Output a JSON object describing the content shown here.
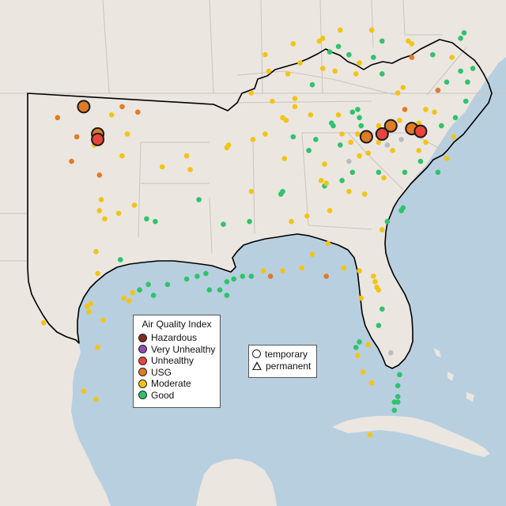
{
  "legend": {
    "title": "Air Quality Index",
    "categories": [
      {
        "label": "Hazardous",
        "color": "#7e2a2a"
      },
      {
        "label": "Very Unhealthy",
        "color": "#8e4fb0"
      },
      {
        "label": "Unhealthy",
        "color": "#e8453c"
      },
      {
        "label": "USG",
        "color": "#e07b26"
      },
      {
        "label": "Moderate",
        "color": "#f2c414"
      },
      {
        "label": "Good",
        "color": "#2ec36b"
      }
    ]
  },
  "shape_legend": {
    "temporary_label": "temporary",
    "permanent_label": "permanent"
  },
  "colors": {
    "water": "#b8cfe0",
    "land": "#ebe6e0",
    "state_border": "#c9c4bd",
    "region_outline": "#000000",
    "no_data": "#b9bcc0"
  },
  "monitors": [
    {
      "lon": -98.2,
      "lat": 36.6,
      "aqi": "USG",
      "major": true
    },
    {
      "lon": -97.4,
      "lat": 35.6,
      "aqi": "USG",
      "major": true
    },
    {
      "lon": -97.4,
      "lat": 35.4,
      "aqi": "Unhealthy",
      "major": true
    },
    {
      "lon": -82.0,
      "lat": 35.5,
      "aqi": "USG",
      "major": true
    },
    {
      "lon": -80.6,
      "lat": 35.9,
      "aqi": "USG",
      "major": true
    },
    {
      "lon": -81.1,
      "lat": 35.6,
      "aqi": "Unhealthy",
      "major": true
    },
    {
      "lon": -79.4,
      "lat": 35.8,
      "aqi": "USG",
      "major": true
    },
    {
      "lon": -78.9,
      "lat": 35.7,
      "aqi": "Unhealthy",
      "major": true
    },
    {
      "lon": -99.7,
      "lat": 36.2,
      "aqi": "USG"
    },
    {
      "lon": -98.6,
      "lat": 35.5,
      "aqi": "USG"
    },
    {
      "lon": -98.9,
      "lat": 34.6,
      "aqi": "USG"
    },
    {
      "lon": -97.3,
      "lat": 34.1,
      "aqi": "USG"
    },
    {
      "lon": -96.0,
      "lat": 36.6,
      "aqi": "USG"
    },
    {
      "lon": -95.1,
      "lat": 36.4,
      "aqi": "USG"
    },
    {
      "lon": -96.6,
      "lat": 36.3,
      "aqi": "Moderate"
    },
    {
      "lon": -95.7,
      "lat": 35.6,
      "aqi": "Moderate"
    },
    {
      "lon": -97.6,
      "lat": 35.2,
      "aqi": "Moderate"
    },
    {
      "lon": -96.0,
      "lat": 34.8,
      "aqi": "Moderate"
    },
    {
      "lon": -93.7,
      "lat": 34.4,
      "aqi": "Moderate"
    },
    {
      "lon": -97.2,
      "lat": 33.2,
      "aqi": "Moderate"
    },
    {
      "lon": -97.3,
      "lat": 32.8,
      "aqi": "Moderate"
    },
    {
      "lon": -97.0,
      "lat": 32.5,
      "aqi": "Moderate"
    },
    {
      "lon": -96.2,
      "lat": 32.7,
      "aqi": "Moderate"
    },
    {
      "lon": -95.3,
      "lat": 33.0,
      "aqi": "Moderate"
    },
    {
      "lon": -94.6,
      "lat": 32.5,
      "aqi": "Good"
    },
    {
      "lon": -94.1,
      "lat": 32.4,
      "aqi": "Good"
    },
    {
      "lon": -97.5,
      "lat": 31.3,
      "aqi": "Moderate"
    },
    {
      "lon": -96.1,
      "lat": 31.0,
      "aqi": "Good"
    },
    {
      "lon": -97.4,
      "lat": 30.5,
      "aqi": "Moderate"
    },
    {
      "lon": -97.8,
      "lat": 29.4,
      "aqi": "Moderate"
    },
    {
      "lon": -98.0,
      "lat": 29.3,
      "aqi": "Moderate"
    },
    {
      "lon": -97.9,
      "lat": 29.1,
      "aqi": "Moderate"
    },
    {
      "lon": -95.9,
      "lat": 29.6,
      "aqi": "Moderate"
    },
    {
      "lon": -95.6,
      "lat": 29.5,
      "aqi": "Moderate"
    },
    {
      "lon": -95.4,
      "lat": 29.8,
      "aqi": "Moderate"
    },
    {
      "lon": -95.0,
      "lat": 29.9,
      "aqi": "Good"
    },
    {
      "lon": -94.5,
      "lat": 30.1,
      "aqi": "Good"
    },
    {
      "lon": -94.2,
      "lat": 29.7,
      "aqi": "Good"
    },
    {
      "lon": -93.4,
      "lat": 30.1,
      "aqi": "Good"
    },
    {
      "lon": -92.3,
      "lat": 30.3,
      "aqi": "Good"
    },
    {
      "lon": -91.7,
      "lat": 30.4,
      "aqi": "Good"
    },
    {
      "lon": -91.2,
      "lat": 30.5,
      "aqi": "Good"
    },
    {
      "lon": -91.0,
      "lat": 29.9,
      "aqi": "Good"
    },
    {
      "lon": -90.4,
      "lat": 29.9,
      "aqi": "Good"
    },
    {
      "lon": -90.0,
      "lat": 29.7,
      "aqi": "Good"
    },
    {
      "lon": -90.0,
      "lat": 30.2,
      "aqi": "Good"
    },
    {
      "lon": -89.6,
      "lat": 30.3,
      "aqi": "Good"
    },
    {
      "lon": -89.1,
      "lat": 30.4,
      "aqi": "Good"
    },
    {
      "lon": -88.6,
      "lat": 30.4,
      "aqi": "Good"
    },
    {
      "lon": -87.9,
      "lat": 30.6,
      "aqi": "Moderate"
    },
    {
      "lon": -87.5,
      "lat": 30.4,
      "aqi": "USG"
    },
    {
      "lon": -86.8,
      "lat": 30.6,
      "aqi": "Moderate"
    },
    {
      "lon": -85.7,
      "lat": 30.7,
      "aqi": "Moderate"
    },
    {
      "lon": -84.3,
      "lat": 30.4,
      "aqi": "USG"
    },
    {
      "lon": -83.3,
      "lat": 30.7,
      "aqi": "Moderate"
    },
    {
      "lon": -82.4,
      "lat": 30.6,
      "aqi": "Moderate"
    },
    {
      "lon": -81.6,
      "lat": 30.4,
      "aqi": "Moderate"
    },
    {
      "lon": -81.5,
      "lat": 30.2,
      "aqi": "Moderate"
    },
    {
      "lon": -81.4,
      "lat": 30.0,
      "aqi": "Moderate"
    },
    {
      "lon": -81.3,
      "lat": 29.9,
      "aqi": "Moderate"
    },
    {
      "lon": -82.3,
      "lat": 29.6,
      "aqi": "Moderate"
    },
    {
      "lon": -81.1,
      "lat": 29.2,
      "aqi": "Good"
    },
    {
      "lon": -81.3,
      "lat": 28.6,
      "aqi": "Good"
    },
    {
      "lon": -82.4,
      "lat": 28.0,
      "aqi": "Good"
    },
    {
      "lon": -81.9,
      "lat": 27.9,
      "aqi": "Moderate"
    },
    {
      "lon": -82.6,
      "lat": 27.8,
      "aqi": "Good"
    },
    {
      "lon": -82.5,
      "lat": 27.5,
      "aqi": "Moderate"
    },
    {
      "lon": -80.6,
      "lat": 27.6,
      "aqi": "No Data"
    },
    {
      "lon": -82.2,
      "lat": 26.9,
      "aqi": "Moderate"
    },
    {
      "lon": -80.1,
      "lat": 26.8,
      "aqi": "Good"
    },
    {
      "lon": -80.2,
      "lat": 26.4,
      "aqi": "Good"
    },
    {
      "lon": -81.7,
      "lat": 26.5,
      "aqi": "Moderate"
    },
    {
      "lon": -80.2,
      "lat": 26.0,
      "aqi": "Good"
    },
    {
      "lon": -80.4,
      "lat": 25.8,
      "aqi": "Good"
    },
    {
      "lon": -80.2,
      "lat": 25.8,
      "aqi": "Good"
    },
    {
      "lon": -80.4,
      "lat": 25.5,
      "aqi": "Good"
    },
    {
      "lon": -81.8,
      "lat": 24.6,
      "aqi": "Moderate"
    },
    {
      "lon": -97.4,
      "lat": 27.8,
      "aqi": "Moderate"
    },
    {
      "lon": -97.5,
      "lat": 25.9,
      "aqi": "Moderate"
    },
    {
      "lon": -98.2,
      "lat": 26.2,
      "aqi": "Moderate"
    },
    {
      "lon": -100.5,
      "lat": 28.7,
      "aqi": "Moderate"
    },
    {
      "lon": -97.1,
      "lat": 28.8,
      "aqi": "Moderate"
    },
    {
      "lon": -92.3,
      "lat": 34.8,
      "aqi": "Moderate"
    },
    {
      "lon": -92.1,
      "lat": 34.3,
      "aqi": "Moderate"
    },
    {
      "lon": -90.0,
      "lat": 35.1,
      "aqi": "Moderate"
    },
    {
      "lon": -89.9,
      "lat": 35.2,
      "aqi": "Moderate"
    },
    {
      "lon": -91.6,
      "lat": 33.2,
      "aqi": "Good"
    },
    {
      "lon": -90.2,
      "lat": 32.3,
      "aqi": "Good"
    },
    {
      "lon": -88.6,
      "lat": 33.5,
      "aqi": "Moderate"
    },
    {
      "lon": -88.7,
      "lat": 32.4,
      "aqi": "Good"
    },
    {
      "lon": -86.8,
      "lat": 33.5,
      "aqi": "Good"
    },
    {
      "lon": -86.9,
      "lat": 33.4,
      "aqi": "Good"
    },
    {
      "lon": -86.7,
      "lat": 34.7,
      "aqi": "Moderate"
    },
    {
      "lon": -86.3,
      "lat": 32.4,
      "aqi": "Moderate"
    },
    {
      "lon": -85.4,
      "lat": 32.6,
      "aqi": "Moderate"
    },
    {
      "lon": -84.4,
      "lat": 33.7,
      "aqi": "Good"
    },
    {
      "lon": -84.3,
      "lat": 33.8,
      "aqi": "Moderate"
    },
    {
      "lon": -84.6,
      "lat": 33.9,
      "aqi": "Moderate"
    },
    {
      "lon": -83.4,
      "lat": 33.9,
      "aqi": "Good"
    },
    {
      "lon": -83.0,
      "lat": 33.5,
      "aqi": "Moderate"
    },
    {
      "lon": -84.1,
      "lat": 32.8,
      "aqi": "Moderate"
    },
    {
      "lon": -84.2,
      "lat": 31.6,
      "aqi": "Moderate"
    },
    {
      "lon": -85.1,
      "lat": 31.2,
      "aqi": "Moderate"
    },
    {
      "lon": -82.1,
      "lat": 33.4,
      "aqi": "Moderate"
    },
    {
      "lon": -81.1,
      "lat": 32.1,
      "aqi": "Moderate"
    },
    {
      "lon": -80.8,
      "lat": 32.4,
      "aqi": "Good"
    },
    {
      "lon": -80.0,
      "lat": 32.8,
      "aqi": "Good"
    },
    {
      "lon": -79.9,
      "lat": 32.9,
      "aqi": "Good"
    },
    {
      "lon": -81.0,
      "lat": 34.0,
      "aqi": "Moderate"
    },
    {
      "lon": -81.3,
      "lat": 34.2,
      "aqi": "Good"
    },
    {
      "lon": -82.4,
      "lat": 34.8,
      "aqi": "Moderate"
    },
    {
      "lon": -81.9,
      "lat": 34.9,
      "aqi": "Moderate"
    },
    {
      "lon": -79.8,
      "lat": 34.2,
      "aqi": "Good"
    },
    {
      "lon": -78.9,
      "lat": 34.6,
      "aqi": "Good"
    },
    {
      "lon": -77.9,
      "lat": 34.2,
      "aqi": "Good"
    },
    {
      "lon": -77.4,
      "lat": 34.7,
      "aqi": "Moderate"
    },
    {
      "lon": -78.6,
      "lat": 35.3,
      "aqi": "Moderate"
    },
    {
      "lon": -80.8,
      "lat": 35.2,
      "aqi": "No Data"
    },
    {
      "lon": -80.5,
      "lat": 35.0,
      "aqi": "Moderate"
    },
    {
      "lon": -79.0,
      "lat": 35.0,
      "aqi": "Moderate"
    },
    {
      "lon": -77.7,
      "lat": 35.9,
      "aqi": "Good"
    },
    {
      "lon": -77.0,
      "lat": 35.5,
      "aqi": "Moderate"
    },
    {
      "lon": -76.9,
      "lat": 36.2,
      "aqi": "Good"
    },
    {
      "lon": -76.3,
      "lat": 36.8,
      "aqi": "Good"
    },
    {
      "lon": -77.4,
      "lat": 37.5,
      "aqi": "Good"
    },
    {
      "lon": -77.9,
      "lat": 37.2,
      "aqi": "USG"
    },
    {
      "lon": -78.6,
      "lat": 36.5,
      "aqi": "Moderate"
    },
    {
      "lon": -78.2,
      "lat": 38.5,
      "aqi": "Good"
    },
    {
      "lon": -77.1,
      "lat": 38.4,
      "aqi": "Moderate"
    },
    {
      "lon": -76.6,
      "lat": 37.9,
      "aqi": "Good"
    },
    {
      "lon": -76.2,
      "lat": 37.5,
      "aqi": "Good"
    },
    {
      "lon": -76.4,
      "lat": 39.3,
      "aqi": "Good"
    },
    {
      "lon": -76.6,
      "lat": 39.1,
      "aqi": "Good"
    },
    {
      "lon": -75.9,
      "lat": 38.0,
      "aqi": "Good"
    },
    {
      "lon": -79.4,
      "lat": 38.4,
      "aqi": "USG"
    },
    {
      "lon": -80.2,
      "lat": 37.1,
      "aqi": "Moderate"
    },
    {
      "lon": -79.9,
      "lat": 37.3,
      "aqi": "Moderate"
    },
    {
      "lon": -79.4,
      "lat": 38.9,
      "aqi": "Moderate"
    },
    {
      "lon": -81.1,
      "lat": 37.8,
      "aqi": "Good"
    },
    {
      "lon": -81.6,
      "lat": 38.4,
      "aqi": "Good"
    },
    {
      "lon": -82.4,
      "lat": 38.2,
      "aqi": "Moderate"
    },
    {
      "lon": -81.7,
      "lat": 39.4,
      "aqi": "Moderate"
    },
    {
      "lon": -81.1,
      "lat": 39.0,
      "aqi": "Good"
    },
    {
      "lon": -83.5,
      "lat": 39.4,
      "aqi": "Moderate"
    },
    {
      "lon": -84.5,
      "lat": 39.1,
      "aqi": "Moderate"
    },
    {
      "lon": -84.7,
      "lat": 39.0,
      "aqi": "Moderate"
    },
    {
      "lon": -84.1,
      "lat": 38.6,
      "aqi": "Good"
    },
    {
      "lon": -83.0,
      "lat": 38.5,
      "aqi": "Good"
    },
    {
      "lon": -83.8,
      "lat": 37.9,
      "aqi": "Moderate"
    },
    {
      "lon": -82.6,
      "lat": 37.8,
      "aqi": "Moderate"
    },
    {
      "lon": -84.5,
      "lat": 38.0,
      "aqi": "Moderate"
    },
    {
      "lon": -85.8,
      "lat": 38.2,
      "aqi": "Moderate"
    },
    {
      "lon": -86.5,
      "lat": 37.8,
      "aqi": "Moderate"
    },
    {
      "lon": -87.6,
      "lat": 37.9,
      "aqi": "Moderate"
    },
    {
      "lon": -88.6,
      "lat": 37.1,
      "aqi": "Moderate"
    },
    {
      "lon": -85.1,
      "lat": 37.4,
      "aqi": "Good"
    },
    {
      "lon": -86.1,
      "lat": 36.9,
      "aqi": "Moderate"
    },
    {
      "lon": -87.4,
      "lat": 36.8,
      "aqi": "Moderate"
    },
    {
      "lon": -86.8,
      "lat": 36.2,
      "aqi": "Moderate"
    },
    {
      "lon": -86.6,
      "lat": 36.1,
      "aqi": "Moderate"
    },
    {
      "lon": -85.3,
      "lat": 35.0,
      "aqi": "Good"
    },
    {
      "lon": -84.0,
      "lat": 36.0,
      "aqi": "Good"
    },
    {
      "lon": -83.9,
      "lat": 35.9,
      "aqi": "Good"
    },
    {
      "lon": -83.6,
      "lat": 36.3,
      "aqi": "Moderate"
    },
    {
      "lon": -82.5,
      "lat": 36.5,
      "aqi": "Good"
    },
    {
      "lon": -83.4,
      "lat": 35.6,
      "aqi": "Moderate"
    },
    {
      "lon": -82.8,
      "lat": 36.4,
      "aqi": "Good"
    },
    {
      "lon": -82.4,
      "lat": 36.2,
      "aqi": "Good"
    },
    {
      "lon": -82.5,
      "lat": 35.6,
      "aqi": "Moderate"
    },
    {
      "lon": -82.9,
      "lat": 35.3,
      "aqi": "Moderate"
    },
    {
      "lon": -83.5,
      "lat": 35.2,
      "aqi": "Good"
    },
    {
      "lon": -81.3,
      "lat": 35.9,
      "aqi": "Moderate"
    },
    {
      "lon": -80.1,
      "lat": 36.1,
      "aqi": "Moderate"
    },
    {
      "lon": -79.8,
      "lat": 36.5,
      "aqi": "USG"
    },
    {
      "lon": -79.0,
      "lat": 36.0,
      "aqi": "Moderate"
    },
    {
      "lon": -78.1,
      "lat": 36.4,
      "aqi": "Moderate"
    },
    {
      "lon": -84.9,
      "lat": 35.4,
      "aqi": "Good"
    },
    {
      "lon": -85.2,
      "lat": 36.3,
      "aqi": "Moderate"
    },
    {
      "lon": -86.2,
      "lat": 35.5,
      "aqi": "Good"
    },
    {
      "lon": -87.8,
      "lat": 35.6,
      "aqi": "Moderate"
    },
    {
      "lon": -88.5,
      "lat": 35.4,
      "aqi": "Moderate"
    },
    {
      "lon": -84.4,
      "lat": 34.5,
      "aqi": "Moderate"
    },
    {
      "lon": -83.0,
      "lat": 34.6,
      "aqi": "No Data"
    },
    {
      "lon": -82.8,
      "lat": 34.2,
      "aqi": "Good"
    },
    {
      "lon": -81.3,
      "lat": 35.3,
      "aqi": "Moderate"
    },
    {
      "lon": -80.0,
      "lat": 35.4,
      "aqi": "No Data"
    },
    {
      "lon": -82.3,
      "lat": 35.9,
      "aqi": "Good"
    },
    {
      "lon": -87.8,
      "lat": 38.5,
      "aqi": "Moderate"
    },
    {
      "lon": -79.6,
      "lat": 39.0,
      "aqi": "Moderate"
    },
    {
      "lon": -86.2,
      "lat": 38.9,
      "aqi": "Moderate"
    },
    {
      "lon": -83.6,
      "lat": 38.8,
      "aqi": "Good"
    },
    {
      "lon": -86.1,
      "lat": 36.6,
      "aqi": "Moderate"
    }
  ]
}
